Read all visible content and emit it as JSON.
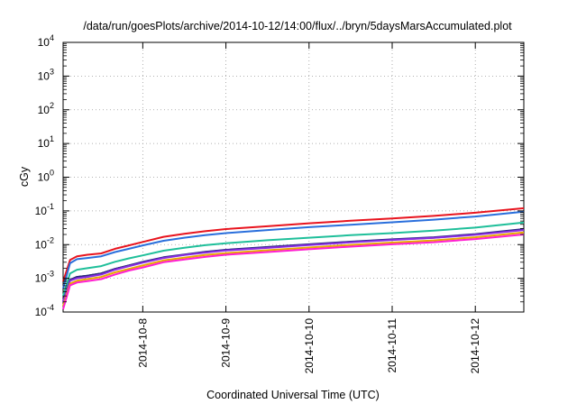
{
  "chart_data": {
    "type": "line",
    "title": "/data/run/goesPlots/archive/2014-10-12/14:00/flux/../bryn/5daysMarsAccumulated.plot",
    "xlabel": "Coordinated Universal Time (UTC)",
    "ylabel": "cGy",
    "x_scale": "time",
    "y_scale": "log",
    "xlim": [
      "2014-10-07T01:00",
      "2014-10-12T14:00"
    ],
    "ylim": [
      0.0001,
      10000
    ],
    "x_ticks": [
      "2014-10-8",
      "2014-10-9",
      "2014-10-10",
      "2014-10-11",
      "2014-10-12"
    ],
    "x_tick_values": [
      "2014-10-08T00:00",
      "2014-10-09T00:00",
      "2014-10-10T00:00",
      "2014-10-11T00:00",
      "2014-10-12T00:00"
    ],
    "y_ticks": [
      {
        "base": "10",
        "exp": "-4",
        "value": 0.0001
      },
      {
        "base": "10",
        "exp": "-3",
        "value": 0.001
      },
      {
        "base": "10",
        "exp": "-2",
        "value": 0.01
      },
      {
        "base": "10",
        "exp": "-1",
        "value": 0.1
      },
      {
        "base": "10",
        "exp": "0",
        "value": 1
      },
      {
        "base": "10",
        "exp": "1",
        "value": 10
      },
      {
        "base": "10",
        "exp": "2",
        "value": 100
      },
      {
        "base": "10",
        "exp": "3",
        "value": 1000
      },
      {
        "base": "10",
        "exp": "4",
        "value": 10000
      }
    ],
    "grid": true,
    "legend": "none",
    "x": [
      "2014-10-07T01:00",
      "2014-10-07T03:00",
      "2014-10-07T05:00",
      "2014-10-07T08:00",
      "2014-10-07T12:00",
      "2014-10-07T16:00",
      "2014-10-07T20:00",
      "2014-10-08T00:00",
      "2014-10-08T06:00",
      "2014-10-08T12:00",
      "2014-10-08T18:00",
      "2014-10-09T00:00",
      "2014-10-09T12:00",
      "2014-10-10T00:00",
      "2014-10-10T12:00",
      "2014-10-11T00:00",
      "2014-10-11T12:00",
      "2014-10-12T00:00",
      "2014-10-12T14:00"
    ],
    "series": [
      {
        "color": "#e8141e",
        "values": [
          0.0008,
          0.0035,
          0.0045,
          0.005,
          0.0055,
          0.0075,
          0.0095,
          0.012,
          0.017,
          0.021,
          0.025,
          0.029,
          0.035,
          0.043,
          0.051,
          0.06,
          0.071,
          0.088,
          0.12
        ]
      },
      {
        "color": "#2a6fdc",
        "values": [
          0.0005,
          0.0028,
          0.0037,
          0.004,
          0.0045,
          0.006,
          0.0075,
          0.0095,
          0.013,
          0.016,
          0.019,
          0.022,
          0.027,
          0.033,
          0.039,
          0.046,
          0.055,
          0.068,
          0.095
        ]
      },
      {
        "color": "#1fbf9a",
        "values": [
          0.0003,
          0.0014,
          0.0018,
          0.002,
          0.0023,
          0.0031,
          0.0039,
          0.0048,
          0.0066,
          0.0081,
          0.0096,
          0.011,
          0.0135,
          0.016,
          0.019,
          0.022,
          0.026,
          0.032,
          0.045
        ]
      },
      {
        "color": "#1a1a1a",
        "values": [
          0.0002,
          0.0009,
          0.0011,
          0.0012,
          0.0014,
          0.0019,
          0.0024,
          0.003,
          0.0041,
          0.005,
          0.006,
          0.0069,
          0.0083,
          0.01,
          0.012,
          0.014,
          0.016,
          0.02,
          0.028
        ]
      },
      {
        "color": "#2a2a80",
        "values": [
          0.0002,
          0.0009,
          0.0011,
          0.0012,
          0.0014,
          0.0019,
          0.0024,
          0.0031,
          0.0042,
          0.0051,
          0.0061,
          0.007,
          0.0085,
          0.0102,
          0.0122,
          0.0143,
          0.0165,
          0.0205,
          0.029
        ]
      },
      {
        "color": "#8a2be2",
        "values": [
          0.0002,
          0.00085,
          0.001,
          0.0011,
          0.0013,
          0.0018,
          0.0023,
          0.0029,
          0.004,
          0.0049,
          0.0058,
          0.0067,
          0.008,
          0.0097,
          0.0116,
          0.0137,
          0.0158,
          0.0195,
          0.027
        ]
      },
      {
        "color": "#e8a800",
        "values": [
          0.00015,
          0.0007,
          0.00085,
          0.00095,
          0.0011,
          0.0015,
          0.0019,
          0.0024,
          0.0034,
          0.0041,
          0.0049,
          0.0056,
          0.0068,
          0.0082,
          0.0098,
          0.0115,
          0.0133,
          0.0165,
          0.023
        ]
      },
      {
        "color": "#ff1fd0",
        "values": [
          0.00012,
          0.00062,
          0.00075,
          0.00082,
          0.00095,
          0.0013,
          0.0017,
          0.0021,
          0.003,
          0.0036,
          0.0043,
          0.005,
          0.006,
          0.0073,
          0.0087,
          0.0102,
          0.0118,
          0.0146,
          0.02
        ]
      }
    ]
  }
}
